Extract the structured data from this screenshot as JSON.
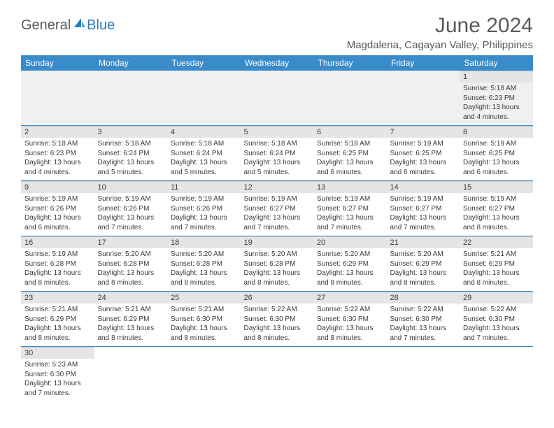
{
  "logo": {
    "text1": "General",
    "text2": "Blue"
  },
  "title": "June 2024",
  "location": "Magdalena, Cagayan Valley, Philippines",
  "colors": {
    "header_bg": "#3a8bc9",
    "header_text": "#ffffff",
    "daynum_bg": "#e5e5e5",
    "empty_bg": "#f0f0f0",
    "border": "#3a8bc9",
    "text": "#3a3a3a",
    "title_text": "#5a5a5a",
    "logo_blue": "#2b7bbf"
  },
  "weekdays": [
    "Sunday",
    "Monday",
    "Tuesday",
    "Wednesday",
    "Thursday",
    "Friday",
    "Saturday"
  ],
  "weeks": [
    [
      null,
      null,
      null,
      null,
      null,
      null,
      {
        "n": "1",
        "sr": "5:18 AM",
        "ss": "6:23 PM",
        "dl": "13 hours and 4 minutes."
      }
    ],
    [
      {
        "n": "2",
        "sr": "5:18 AM",
        "ss": "6:23 PM",
        "dl": "13 hours and 4 minutes."
      },
      {
        "n": "3",
        "sr": "5:18 AM",
        "ss": "6:24 PM",
        "dl": "13 hours and 5 minutes."
      },
      {
        "n": "4",
        "sr": "5:18 AM",
        "ss": "6:24 PM",
        "dl": "13 hours and 5 minutes."
      },
      {
        "n": "5",
        "sr": "5:18 AM",
        "ss": "6:24 PM",
        "dl": "13 hours and 5 minutes."
      },
      {
        "n": "6",
        "sr": "5:18 AM",
        "ss": "6:25 PM",
        "dl": "13 hours and 6 minutes."
      },
      {
        "n": "7",
        "sr": "5:19 AM",
        "ss": "6:25 PM",
        "dl": "13 hours and 6 minutes."
      },
      {
        "n": "8",
        "sr": "5:19 AM",
        "ss": "6:25 PM",
        "dl": "13 hours and 6 minutes."
      }
    ],
    [
      {
        "n": "9",
        "sr": "5:19 AM",
        "ss": "6:26 PM",
        "dl": "13 hours and 6 minutes."
      },
      {
        "n": "10",
        "sr": "5:19 AM",
        "ss": "6:26 PM",
        "dl": "13 hours and 7 minutes."
      },
      {
        "n": "11",
        "sr": "5:19 AM",
        "ss": "6:26 PM",
        "dl": "13 hours and 7 minutes."
      },
      {
        "n": "12",
        "sr": "5:19 AM",
        "ss": "6:27 PM",
        "dl": "13 hours and 7 minutes."
      },
      {
        "n": "13",
        "sr": "5:19 AM",
        "ss": "6:27 PM",
        "dl": "13 hours and 7 minutes."
      },
      {
        "n": "14",
        "sr": "5:19 AM",
        "ss": "6:27 PM",
        "dl": "13 hours and 7 minutes."
      },
      {
        "n": "15",
        "sr": "5:19 AM",
        "ss": "6:27 PM",
        "dl": "13 hours and 8 minutes."
      }
    ],
    [
      {
        "n": "16",
        "sr": "5:19 AM",
        "ss": "6:28 PM",
        "dl": "13 hours and 8 minutes."
      },
      {
        "n": "17",
        "sr": "5:20 AM",
        "ss": "6:28 PM",
        "dl": "13 hours and 8 minutes."
      },
      {
        "n": "18",
        "sr": "5:20 AM",
        "ss": "6:28 PM",
        "dl": "13 hours and 8 minutes."
      },
      {
        "n": "19",
        "sr": "5:20 AM",
        "ss": "6:28 PM",
        "dl": "13 hours and 8 minutes."
      },
      {
        "n": "20",
        "sr": "5:20 AM",
        "ss": "6:29 PM",
        "dl": "13 hours and 8 minutes."
      },
      {
        "n": "21",
        "sr": "5:20 AM",
        "ss": "6:29 PM",
        "dl": "13 hours and 8 minutes."
      },
      {
        "n": "22",
        "sr": "5:21 AM",
        "ss": "6:29 PM",
        "dl": "13 hours and 8 minutes."
      }
    ],
    [
      {
        "n": "23",
        "sr": "5:21 AM",
        "ss": "6:29 PM",
        "dl": "13 hours and 8 minutes."
      },
      {
        "n": "24",
        "sr": "5:21 AM",
        "ss": "6:29 PM",
        "dl": "13 hours and 8 minutes."
      },
      {
        "n": "25",
        "sr": "5:21 AM",
        "ss": "6:30 PM",
        "dl": "13 hours and 8 minutes."
      },
      {
        "n": "26",
        "sr": "5:22 AM",
        "ss": "6:30 PM",
        "dl": "13 hours and 8 minutes."
      },
      {
        "n": "27",
        "sr": "5:22 AM",
        "ss": "6:30 PM",
        "dl": "13 hours and 8 minutes."
      },
      {
        "n": "28",
        "sr": "5:22 AM",
        "ss": "6:30 PM",
        "dl": "13 hours and 7 minutes."
      },
      {
        "n": "29",
        "sr": "5:22 AM",
        "ss": "6:30 PM",
        "dl": "13 hours and 7 minutes."
      }
    ],
    [
      {
        "n": "30",
        "sr": "5:23 AM",
        "ss": "6:30 PM",
        "dl": "13 hours and 7 minutes."
      },
      null,
      null,
      null,
      null,
      null,
      null
    ]
  ],
  "labels": {
    "sunrise": "Sunrise: ",
    "sunset": "Sunset: ",
    "daylight": "Daylight: "
  }
}
